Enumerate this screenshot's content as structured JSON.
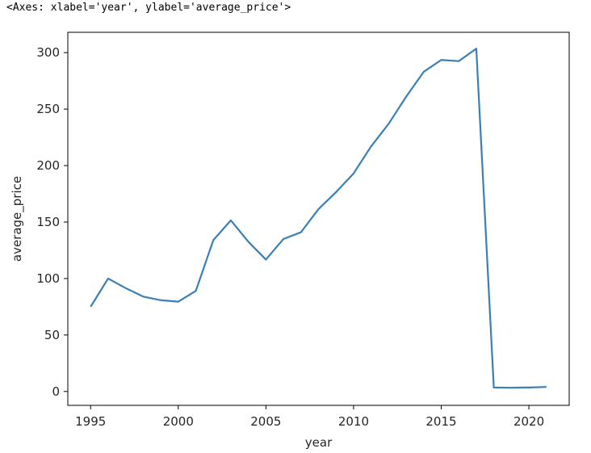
{
  "output_text": "<Axes: xlabel='year', ylabel='average_price'>",
  "chart_data": {
    "type": "line",
    "title": "",
    "xlabel": "year",
    "ylabel": "average_price",
    "x_ticks": [
      1995,
      2000,
      2005,
      2010,
      2015,
      2020
    ],
    "y_ticks": [
      0,
      50,
      100,
      150,
      200,
      250,
      300
    ],
    "xlim": [
      1993.7,
      2022.3
    ],
    "ylim": [
      -12.3,
      318
    ],
    "grid": false,
    "line_color": "#3a7fb5",
    "series": [
      {
        "x": [
          1995,
          1996,
          1997,
          1998,
          1999,
          2000,
          2001,
          2002,
          2003,
          2004,
          2005,
          2006,
          2007,
          2008,
          2009,
          2010,
          2011,
          2012,
          2013,
          2014,
          2015,
          2016,
          2017,
          2018,
          2019,
          2020,
          2021
        ],
        "y": [
          75,
          100,
          91.5,
          84,
          80.8,
          79.5,
          89,
          134,
          151.5,
          132.5,
          116.8,
          135,
          141,
          161.5,
          176.5,
          193,
          217,
          237,
          261,
          283,
          293.5,
          292.5,
          303.5,
          3.5,
          3.3,
          3.5,
          4
        ]
      }
    ]
  }
}
